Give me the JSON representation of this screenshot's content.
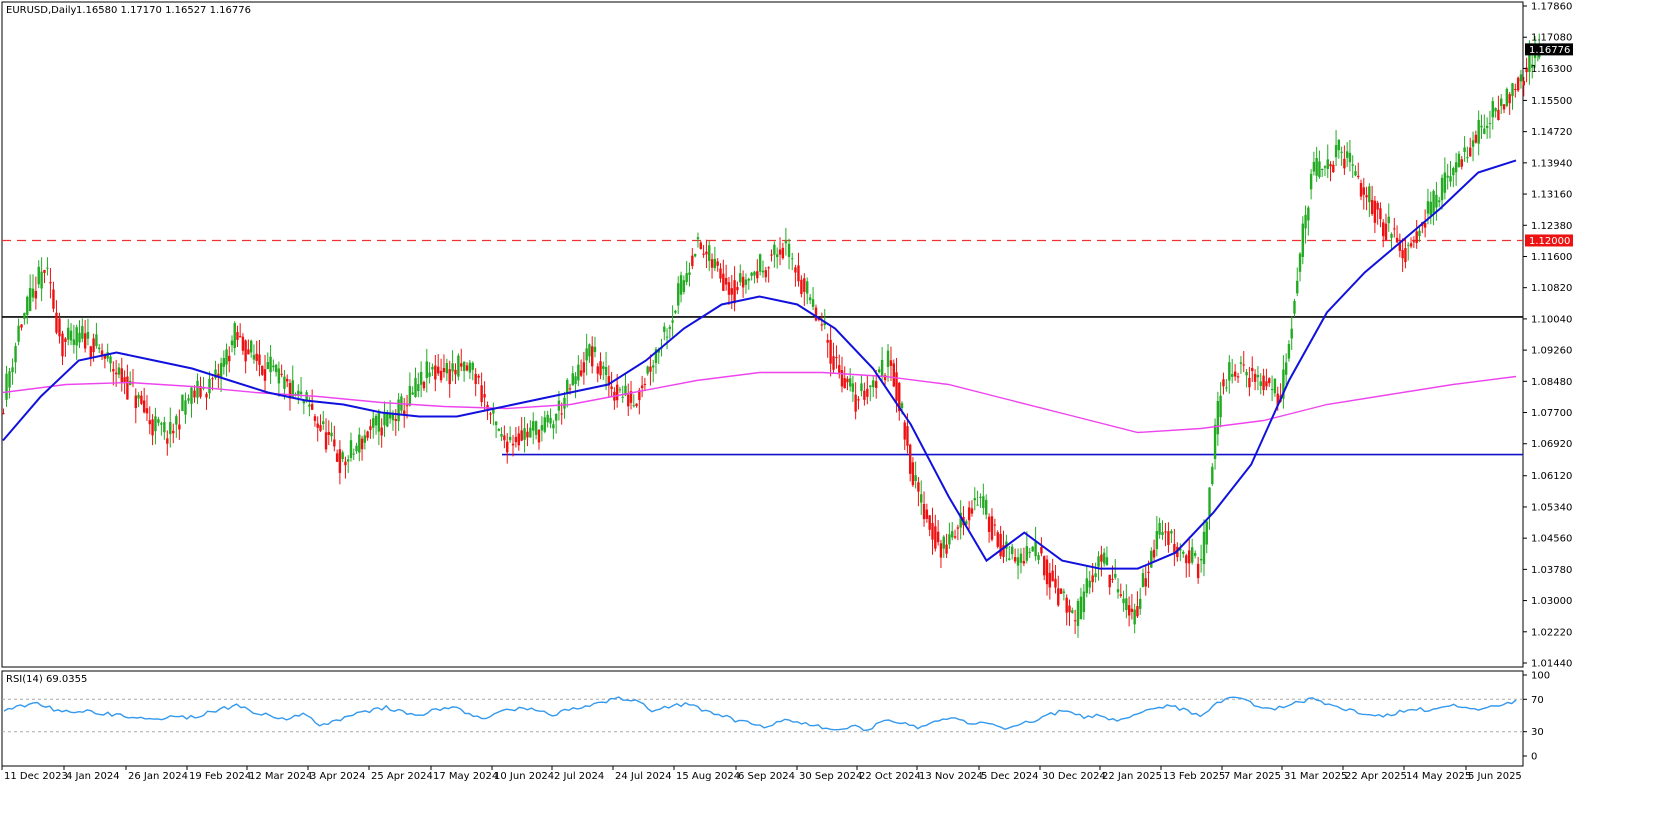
{
  "header": {
    "symbol": "EURUSD,Daily",
    "ohlc": "1.16580 1.17170 1.16527 1.16776"
  },
  "price_axis": {
    "labels": [
      "1.17860",
      "1.17080",
      "1.16300",
      "1.15500",
      "1.14720",
      "1.13940",
      "1.13160",
      "1.12380",
      "1.11600",
      "1.10820",
      "1.10040",
      "1.09260",
      "1.08480",
      "1.07700",
      "1.06920",
      "1.06120",
      "1.05340",
      "1.04560",
      "1.03780",
      "1.03000",
      "1.02220",
      "1.01440"
    ],
    "current_price_tag": "1.16776",
    "level_tag": "1.12000"
  },
  "date_axis": {
    "labels": [
      "11 Dec 2023",
      "4 Jan 2024",
      "26 Jan 2024",
      "19 Feb 2024",
      "12 Mar 2024",
      "3 Apr 2024",
      "25 Apr 2024",
      "17 May 2024",
      "10 Jun 2024",
      "2 Jul 2024",
      "24 Jul 2024",
      "15 Aug 2024",
      "6 Sep 2024",
      "30 Sep 2024",
      "22 Oct 2024",
      "13 Nov 2024",
      "5 Dec 2024",
      "30 Dec 2024",
      "22 Jan 2025",
      "13 Feb 2025",
      "7 Mar 2025",
      "31 Mar 2025",
      "22 Apr 2025",
      "14 May 2025",
      "5 Jun 2025"
    ]
  },
  "rsi_panel": {
    "title": "RSI(14) 69.0355",
    "labels": [
      "100",
      "70",
      "30",
      "0"
    ]
  },
  "colors": {
    "bull": "#22aa22",
    "bear": "#ee1111",
    "ma_short": "#1111dd",
    "ma_long": "#ee44ee",
    "resistance": "#ee3333",
    "support": "#1111cc",
    "pivot": "#000000",
    "rsi": "#3399ee"
  },
  "chart_data": {
    "type": "candlestick",
    "title": "EURUSD,Daily",
    "timeframe": "Daily",
    "ohlc_last": {
      "open": 1.1658,
      "high": 1.1717,
      "low": 1.16527,
      "close": 1.16776
    },
    "ylim": [
      1.011,
      1.1815
    ],
    "date_range": [
      "11 Dec 2023",
      "5 Jun 2025"
    ],
    "close_path": [
      {
        "date": "11 Dec 2023",
        "close": 1.077
      },
      {
        "date": "18 Dec 2023",
        "close": 1.098
      },
      {
        "date": "28 Dec 2023",
        "close": 1.113
      },
      {
        "date": "4 Jan 2024",
        "close": 1.094
      },
      {
        "date": "12 Jan 2024",
        "close": 1.096
      },
      {
        "date": "26 Jan 2024",
        "close": 1.085
      },
      {
        "date": "6 Feb 2024",
        "close": 1.074
      },
      {
        "date": "13 Feb 2024",
        "close": 1.071
      },
      {
        "date": "19 Feb 2024",
        "close": 1.08
      },
      {
        "date": "1 Mar 2024",
        "close": 1.085
      },
      {
        "date": "8 Mar 2024",
        "close": 1.096
      },
      {
        "date": "12 Mar 2024",
        "close": 1.093
      },
      {
        "date": "20 Mar 2024",
        "close": 1.088
      },
      {
        "date": "27 Mar 2024",
        "close": 1.083
      },
      {
        "date": "3 Apr 2024",
        "close": 1.079
      },
      {
        "date": "16 Apr 2024",
        "close": 1.064
      },
      {
        "date": "25 Apr 2024",
        "close": 1.072
      },
      {
        "date": "6 May 2024",
        "close": 1.077
      },
      {
        "date": "17 May 2024",
        "close": 1.087
      },
      {
        "date": "3 Jun 2024",
        "close": 1.088
      },
      {
        "date": "10 Jun 2024",
        "close": 1.076
      },
      {
        "date": "14 Jun 2024",
        "close": 1.07
      },
      {
        "date": "2 Jul 2024",
        "close": 1.074
      },
      {
        "date": "16 Jul 2024",
        "close": 1.092
      },
      {
        "date": "24 Jul 2024",
        "close": 1.083
      },
      {
        "date": "1 Aug 2024",
        "close": 1.08
      },
      {
        "date": "15 Aug 2024",
        "close": 1.102
      },
      {
        "date": "23 Aug 2024",
        "close": 1.119
      },
      {
        "date": "6 Sep 2024",
        "close": 1.108
      },
      {
        "date": "25 Sep 2024",
        "close": 1.118
      },
      {
        "date": "30 Sep 2024",
        "close": 1.113
      },
      {
        "date": "15 Oct 2024",
        "close": 1.089
      },
      {
        "date": "22 Oct 2024",
        "close": 1.08
      },
      {
        "date": "4 Nov 2024",
        "close": 1.09
      },
      {
        "date": "13 Nov 2024",
        "close": 1.058
      },
      {
        "date": "22 Nov 2024",
        "close": 1.042
      },
      {
        "date": "5 Dec 2024",
        "close": 1.056
      },
      {
        "date": "18 Dec 2024",
        "close": 1.04
      },
      {
        "date": "30 Dec 2024",
        "close": 1.042
      },
      {
        "date": "13 Jan 2025",
        "close": 1.024
      },
      {
        "date": "22 Jan 2025",
        "close": 1.042
      },
      {
        "date": "3 Feb 2025",
        "close": 1.025
      },
      {
        "date": "13 Feb 2025",
        "close": 1.048
      },
      {
        "date": "28 Feb 2025",
        "close": 1.038
      },
      {
        "date": "7 Mar 2025",
        "close": 1.084
      },
      {
        "date": "14 Mar 2025",
        "close": 1.088
      },
      {
        "date": "31 Mar 2025",
        "close": 1.082
      },
      {
        "date": "11 Apr 2025",
        "close": 1.136
      },
      {
        "date": "22 Apr 2025",
        "close": 1.142
      },
      {
        "date": "2 May 2025",
        "close": 1.13
      },
      {
        "date": "14 May 2025",
        "close": 1.117
      },
      {
        "date": "5 Jun 2025",
        "close": 1.142
      },
      {
        "date": "24 Jun 2025",
        "close": 1.16
      },
      {
        "date": "1 Jul 2025",
        "close": 1.1678
      }
    ],
    "ma_short_path": [
      1.07,
      1.081,
      1.09,
      1.092,
      1.09,
      1.088,
      1.085,
      1.082,
      1.08,
      1.079,
      1.077,
      1.076,
      1.076,
      1.078,
      1.08,
      1.082,
      1.084,
      1.09,
      1.098,
      1.104,
      1.106,
      1.104,
      1.098,
      1.088,
      1.074,
      1.056,
      1.04,
      1.047,
      1.04,
      1.038,
      1.038,
      1.042,
      1.052,
      1.064,
      1.085,
      1.102,
      1.112,
      1.12,
      1.128,
      1.137,
      1.14
    ],
    "ma_long_path": [
      1.082,
      1.084,
      1.0845,
      1.0835,
      1.082,
      1.081,
      1.0795,
      1.0785,
      1.078,
      1.079,
      1.082,
      1.085,
      1.087,
      1.087,
      1.086,
      1.084,
      1.08,
      1.076,
      1.072,
      1.073,
      1.075,
      1.079,
      1.0815,
      1.084,
      1.086
    ],
    "horizontal_levels": [
      {
        "price": 1.12,
        "style": "dashed",
        "color": "#ee3333"
      },
      {
        "price": 1.1009,
        "style": "solid",
        "color": "#000000"
      },
      {
        "price": 1.0665,
        "style": "solid",
        "color": "#1111cc",
        "start_date": "10 Jun 2024"
      }
    ],
    "rsi": {
      "period": 14,
      "value": 69.0355,
      "levels": [
        70,
        30
      ],
      "ylim": [
        0,
        100
      ],
      "path": [
        55,
        62,
        66,
        58,
        54,
        56,
        52,
        50,
        48,
        44,
        50,
        46,
        52,
        58,
        62,
        54,
        50,
        46,
        52,
        38,
        44,
        50,
        56,
        60,
        54,
        50,
        58,
        60,
        52,
        46,
        54,
        60,
        56,
        50,
        58,
        62,
        66,
        72,
        68,
        56,
        60,
        64,
        58,
        52,
        44,
        40,
        36,
        46,
        40,
        38,
        30,
        38,
        32,
        44,
        40,
        36,
        44,
        48,
        40,
        42,
        34,
        38,
        44,
        52,
        56,
        48,
        50,
        44,
        52,
        58,
        62,
        58,
        50,
        64,
        72,
        66,
        58,
        60,
        68,
        70,
        62,
        56,
        52,
        48,
        54,
        58,
        56,
        62,
        60,
        58,
        64,
        68
      ]
    }
  }
}
